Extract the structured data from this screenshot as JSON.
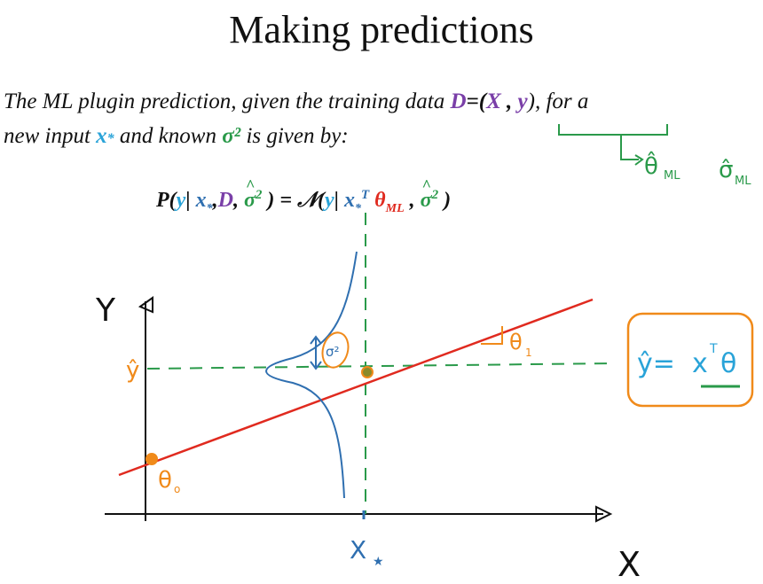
{
  "slide": {
    "title": "Making predictions",
    "line1_pre": "The ML plugin prediction, given the training data ",
    "line1_D": "D",
    "line1_eq": "=(",
    "line1_X": "X",
    "line1_comma": " , ",
    "line1_y": "y",
    "line1_post": "), for a",
    "line2_pre": "new input ",
    "line2_x": "x",
    "line2_star": "*",
    "line2_mid": " and known ",
    "line2_sigma": "σ²",
    "line2_post": "  is given by:"
  },
  "formula": {
    "P": "P(",
    "y1": "y",
    "bar1": "| ",
    "x1": "x",
    "star1": "*",
    "commaD": ",",
    "D": "D",
    "comma2": ", ",
    "sigma": "σ",
    "sq": "2",
    "close": " )  =  ",
    "N": "𝒩(",
    "y2": "y",
    "bar2": "| ",
    "x2": "x",
    "star2": "*",
    "T": "T",
    "theta": " θ",
    "ML": "ML",
    "comma3": " , ",
    "sigma2": "σ",
    "sq2": "2",
    "close2": " )"
  },
  "annotations": {
    "theta_ml": "θ̂",
    "theta_ml_sub": "ML",
    "sigma_ml": "σ̂",
    "sigma_ml_sub": "ML",
    "axis_y": "Y",
    "axis_x": "X",
    "y_hat": "ŷ",
    "x_star": "X",
    "theta0": "θ",
    "theta0_sub": "o",
    "theta1": "θ",
    "theta1_sub": "1",
    "sigma_sq": "σ²",
    "boxed_eq_lhs": "ŷ=",
    "boxed_eq_x": "x",
    "boxed_eq_T": "T",
    "boxed_eq_theta": "θ"
  },
  "colors": {
    "purple": "#7a3fa8",
    "blue": "#2f6fb0",
    "green": "#2a9a4a",
    "red": "#e02a1f",
    "orange": "#f08a1a",
    "cyan": "#29a3d8"
  }
}
